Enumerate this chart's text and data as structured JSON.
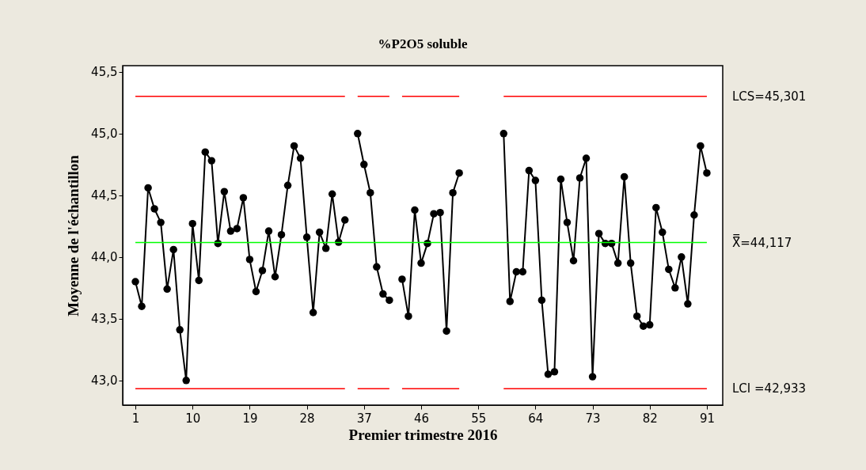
{
  "chart_data": {
    "type": "line",
    "title": "%P2O5 soluble",
    "xlabel": "Premier trimestre 2016",
    "ylabel": "Moyenne de l'échantillon",
    "x": [
      1,
      2,
      3,
      4,
      5,
      6,
      7,
      8,
      9,
      10,
      11,
      12,
      13,
      14,
      15,
      16,
      17,
      18,
      19,
      20,
      21,
      22,
      23,
      24,
      25,
      26,
      27,
      28,
      29,
      30,
      31,
      32,
      33,
      34,
      35,
      36,
      37,
      38,
      39,
      40,
      41,
      42,
      43,
      44,
      45,
      46,
      47,
      48,
      49,
      50,
      51,
      52,
      53,
      54,
      55,
      56,
      57,
      58,
      59,
      60,
      61,
      62,
      63,
      64,
      65,
      66,
      67,
      68,
      69,
      70,
      71,
      72,
      73,
      74,
      75,
      76,
      77,
      78,
      79,
      80,
      81,
      82,
      83,
      84,
      85,
      86,
      87,
      88,
      89,
      90,
      91
    ],
    "series": [
      {
        "color": "#000000",
        "values": [
          43.8,
          43.6,
          44.56,
          44.39,
          44.28,
          43.74,
          44.06,
          43.41,
          43.0,
          44.27,
          43.81,
          44.85,
          44.78,
          44.11,
          44.53,
          44.21,
          44.23,
          44.48,
          43.98,
          43.72,
          43.89,
          44.21,
          43.84,
          44.18,
          44.58,
          44.9,
          44.8,
          44.16,
          43.55,
          44.2,
          44.07,
          44.51,
          44.12,
          44.3,
          null,
          45.0,
          44.75,
          44.52,
          43.92,
          43.7,
          43.65,
          null,
          43.82,
          43.52,
          44.38,
          43.95,
          44.11,
          44.35,
          44.36,
          43.4,
          44.52,
          44.68,
          null,
          null,
          null,
          null,
          null,
          null,
          45.0,
          43.64,
          43.88,
          43.88,
          44.7,
          44.62,
          43.65,
          43.05,
          43.07,
          44.63,
          44.28,
          43.97,
          44.64,
          44.8,
          43.03,
          44.19,
          44.11,
          44.11,
          43.95,
          44.65,
          43.95,
          43.52,
          43.44,
          43.45,
          44.4,
          44.2,
          43.9,
          43.75,
          44.0,
          43.62,
          44.34,
          44.9,
          44.68
        ]
      },
      {
        "name": "LCS=45,301",
        "color": "#ff0000",
        "marker": "none",
        "values": [
          45.301,
          45.301,
          45.301,
          45.301,
          45.301,
          45.301,
          45.301,
          45.301,
          45.301,
          45.301,
          45.301,
          45.301,
          45.301,
          45.301,
          45.301,
          45.301,
          45.301,
          45.301,
          45.301,
          45.301,
          45.301,
          45.301,
          45.301,
          45.301,
          45.301,
          45.301,
          45.301,
          45.301,
          45.301,
          45.301,
          45.301,
          45.301,
          45.301,
          45.301,
          null,
          45.301,
          45.301,
          45.301,
          45.301,
          45.301,
          45.301,
          null,
          45.301,
          45.301,
          45.301,
          45.301,
          45.301,
          45.301,
          45.301,
          45.301,
          45.301,
          45.301,
          null,
          null,
          null,
          null,
          null,
          null,
          45.301,
          45.301,
          45.301,
          45.301,
          45.301,
          45.301,
          45.301,
          45.301,
          45.301,
          45.301,
          45.301,
          45.301,
          45.301,
          45.301,
          45.301,
          45.301,
          45.301,
          45.301,
          45.301,
          45.301,
          45.301,
          45.301,
          45.301,
          45.301,
          45.301,
          45.301,
          45.301,
          45.301,
          45.301,
          45.301,
          45.301,
          45.301,
          45.301
        ]
      },
      {
        "name": "LCI =42,933",
        "color": "#ff0000",
        "marker": "none",
        "values": [
          42.933,
          42.933,
          42.933,
          42.933,
          42.933,
          42.933,
          42.933,
          42.933,
          42.933,
          42.933,
          42.933,
          42.933,
          42.933,
          42.933,
          42.933,
          42.933,
          42.933,
          42.933,
          42.933,
          42.933,
          42.933,
          42.933,
          42.933,
          42.933,
          42.933,
          42.933,
          42.933,
          42.933,
          42.933,
          42.933,
          42.933,
          42.933,
          42.933,
          42.933,
          null,
          42.933,
          42.933,
          42.933,
          42.933,
          42.933,
          42.933,
          null,
          42.933,
          42.933,
          42.933,
          42.933,
          42.933,
          42.933,
          42.933,
          42.933,
          42.933,
          42.933,
          null,
          null,
          null,
          null,
          null,
          null,
          42.933,
          42.933,
          42.933,
          42.933,
          42.933,
          42.933,
          42.933,
          42.933,
          42.933,
          42.933,
          42.933,
          42.933,
          42.933,
          42.933,
          42.933,
          42.933,
          42.933,
          42.933,
          42.933,
          42.933,
          42.933,
          42.933,
          42.933,
          42.933,
          42.933,
          42.933,
          42.933,
          42.933,
          42.933,
          42.933,
          42.933,
          42.933,
          42.933
        ]
      }
    ],
    "marker": "circle",
    "line_style": "solid",
    "grid": false,
    "xlim": [
      -1,
      93.5
    ],
    "xticks": [
      1,
      10,
      19,
      28,
      37,
      46,
      55,
      64,
      73,
      82,
      91
    ],
    "ylim": [
      42.8,
      45.55
    ],
    "yticks": [
      {
        "value": 43.0,
        "label": "43,0"
      },
      {
        "value": 43.5,
        "label": "43,5"
      },
      {
        "value": 44.0,
        "label": "44,0"
      },
      {
        "value": 44.5,
        "label": "44,5"
      },
      {
        "value": 45.0,
        "label": "45,0"
      },
      {
        "value": 45.5,
        "label": "45,5"
      }
    ],
    "ref_lines": [
      {
        "axis": "y",
        "value": 44.117,
        "label": "X̿=44,117",
        "color": "#00ff00"
      }
    ]
  }
}
